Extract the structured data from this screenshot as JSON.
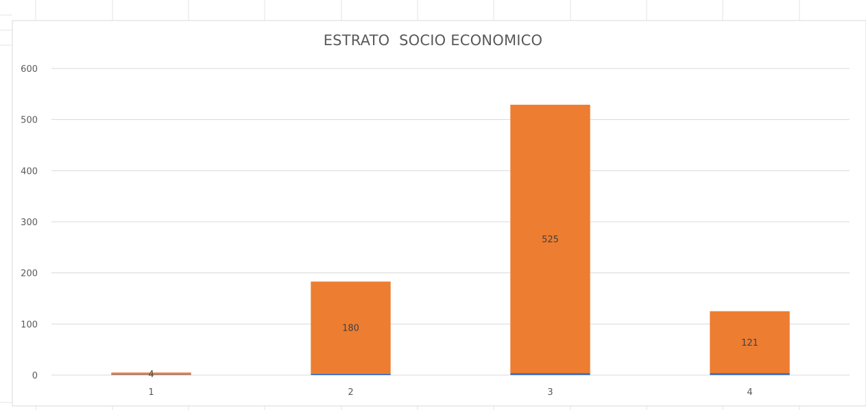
{
  "chart_data": {
    "type": "bar",
    "stacked": true,
    "title": "ESTRATO  SOCIO ECONOMICO",
    "xlabel": "",
    "ylabel": "",
    "categories": [
      "1",
      "2",
      "3",
      "4"
    ],
    "series": [
      {
        "values": [
          1,
          3,
          4,
          4
        ],
        "color": "#4472C4"
      },
      {
        "values": [
          4,
          180,
          525,
          121
        ],
        "color": "#ED7D31",
        "data_labels": [
          "4",
          "180",
          "525",
          "121"
        ]
      }
    ],
    "ylim": [
      0,
      600
    ],
    "yticks": [
      "0",
      "100",
      "200",
      "300",
      "400",
      "500",
      "600"
    ],
    "grid": true,
    "legend": "none"
  }
}
